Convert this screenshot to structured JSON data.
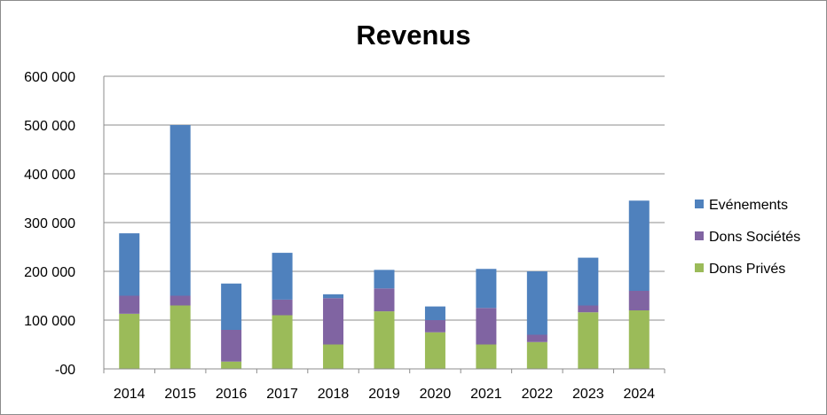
{
  "chart_data": {
    "type": "bar",
    "stacked": true,
    "title": "Revenus",
    "xlabel": "",
    "ylabel": "",
    "categories": [
      "2014",
      "2015",
      "2016",
      "2017",
      "2018",
      "2019",
      "2020",
      "2021",
      "2022",
      "2023",
      "2024"
    ],
    "series": [
      {
        "name": "Dons Privés",
        "color": "#9bbb59",
        "values": [
          113000,
          130000,
          15000,
          110000,
          50000,
          118000,
          75000,
          50000,
          55000,
          116000,
          120000
        ]
      },
      {
        "name": "Dons Sociétés",
        "color": "#8064a2",
        "values": [
          37000,
          20000,
          65000,
          32000,
          95000,
          47000,
          25000,
          75000,
          15000,
          14000,
          40000
        ]
      },
      {
        "name": "Evénements",
        "color": "#4f81bd",
        "values": [
          128000,
          350000,
          95000,
          96000,
          8000,
          38000,
          28000,
          80000,
          130000,
          98000,
          185000
        ]
      }
    ],
    "legend_order": [
      "Evénements",
      "Dons Sociétés",
      "Dons Privés"
    ],
    "ylim": [
      0,
      600000
    ],
    "yticks": [
      0,
      100000,
      200000,
      300000,
      400000,
      500000,
      600000
    ],
    "ytick_labels": [
      "-00",
      "100 000",
      "200 000",
      "300 000",
      "400 000",
      "500 000",
      "600 000"
    ],
    "grid": true,
    "legend_position": "right"
  }
}
